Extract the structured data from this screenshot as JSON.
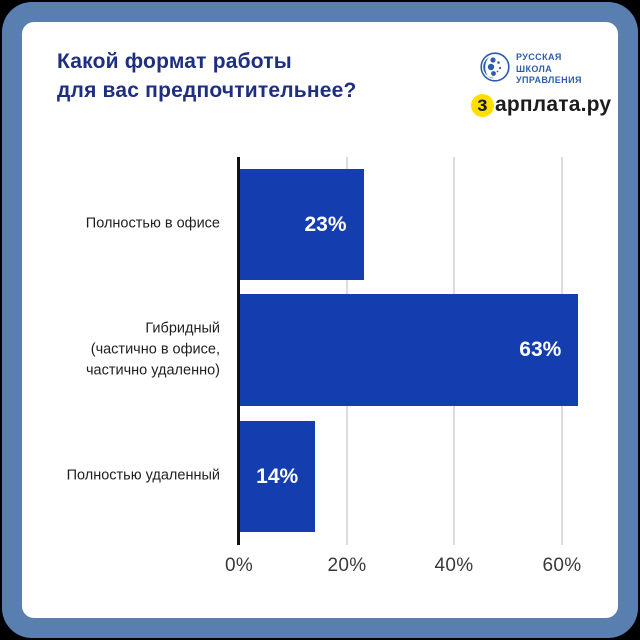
{
  "header": {
    "title": "Какой формат работы\nдля вас предпочтительнее?"
  },
  "logos": {
    "rsu": {
      "line1": "РУССКАЯ",
      "line2": "ШКОЛА",
      "line3": "УПРАВЛЕНИЯ"
    },
    "zarplata": {
      "first_letter": "з",
      "rest": "арплата.ру"
    }
  },
  "chart_data": {
    "type": "bar",
    "orientation": "horizontal",
    "title": "Какой формат работы для вас предпочтительнее?",
    "categories": [
      "Полностью в офисе",
      "Гибридный\n(частично в офисе,\nчастично удаленно)",
      "Полностью удаленный"
    ],
    "values": [
      23,
      63,
      14
    ],
    "value_labels": [
      "23%",
      "63%",
      "14%"
    ],
    "xticks": [
      "0%",
      "20%",
      "40%",
      "60%"
    ],
    "xlim": [
      0,
      70
    ],
    "grid": true,
    "legend": false,
    "bar_color": "#143eb0",
    "value_label_color": "#ffffff"
  },
  "colors": {
    "frame_blue": "#587fb0",
    "card_background": "#ffffff",
    "title_navy": "#1e2f82",
    "bar_blue": "#143eb0",
    "rsu_blue": "#2d5da8",
    "zarplata_yellow": "#ffde00",
    "gridline_gray": "#dddddd",
    "axis_black": "#111111"
  }
}
